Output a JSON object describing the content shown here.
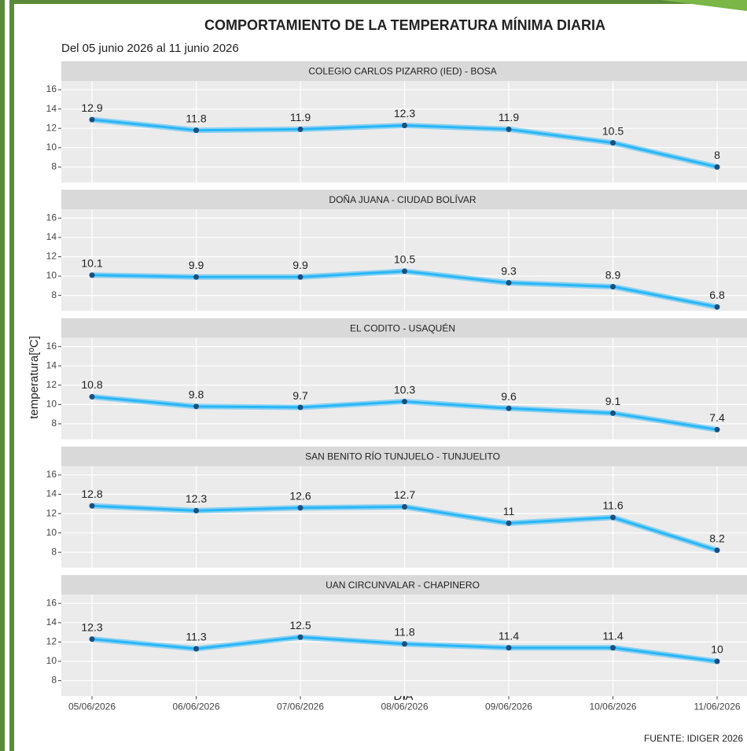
{
  "chart_data": {
    "type": "line",
    "title": "COMPORTAMIENTO DE LA TEMPERATURA MÍNIMA DIARIA",
    "subtitle": "Del 05 junio 2026 al 11 junio 2026",
    "categories": [
      "05/06/2026",
      "06/06/2026",
      "07/06/2026",
      "08/06/2026",
      "09/06/2026",
      "10/06/2026",
      "11/06/2026"
    ],
    "panels": [
      {
        "name": "COLEGIO CARLOS PIZARRO (IED) - BOSA",
        "values": [
          12.9,
          11.8,
          11.9,
          12.3,
          11.9,
          10.5,
          8
        ]
      },
      {
        "name": "DOÑA JUANA - CIUDAD BOLÍVAR",
        "values": [
          10.1,
          9.9,
          9.9,
          10.5,
          9.3,
          8.9,
          6.8
        ]
      },
      {
        "name": "EL CODITO - USAQUÉN",
        "values": [
          10.8,
          9.8,
          9.7,
          10.3,
          9.6,
          9.1,
          7.4
        ]
      },
      {
        "name": "SAN BENITO RÍO TUNJUELO - TUNJUELITO",
        "values": [
          12.8,
          12.3,
          12.6,
          12.7,
          11,
          11.6,
          8.2
        ]
      },
      {
        "name": "UAN CIRCUNVALAR - CHAPINERO",
        "values": [
          12.3,
          11.3,
          12.5,
          11.8,
          11.4,
          11.4,
          10
        ]
      }
    ],
    "line_color": "#29b6f6",
    "point_color": "#1a4f80",
    "ylim": [
      6.4,
      16.9
    ],
    "yticks": [
      8,
      10,
      12,
      14,
      16
    ],
    "grid": true,
    "xlabel": "DIA",
    "ylabel": "temperatura[ºC]",
    "source": "FUENTE: IDIGER 2026"
  }
}
